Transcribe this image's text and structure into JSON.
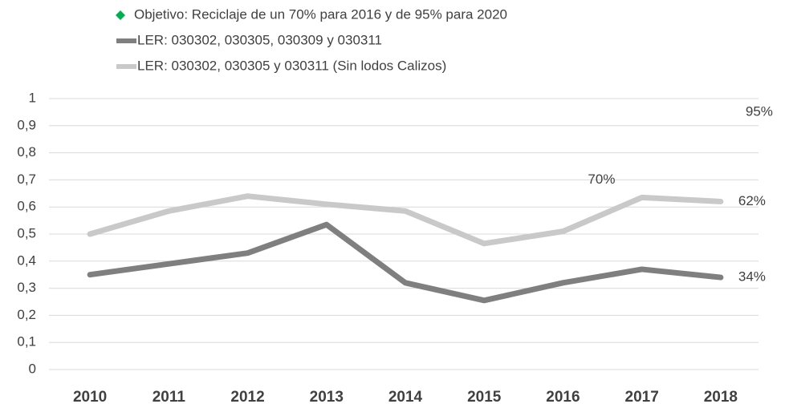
{
  "chart_data": {
    "type": "line",
    "categories": [
      "2010",
      "2011",
      "2012",
      "2013",
      "2014",
      "2015",
      "2016",
      "2017",
      "2018"
    ],
    "series": [
      {
        "name": "Objetivo: Reciclaje de un 70% para 2016 y de 95% para 2020",
        "color": "#00b050",
        "marker": "diamond",
        "values": [
          null,
          null,
          null,
          null,
          null,
          null,
          0.7,
          null,
          0.95
        ],
        "value_labels": [
          null,
          null,
          null,
          null,
          null,
          null,
          "70%",
          null,
          "95%"
        ]
      },
      {
        "name": "LER: 030302, 030305, 030309 y 030311",
        "color": "#7f7f7f",
        "values": [
          0.35,
          0.39,
          0.43,
          0.535,
          0.32,
          0.255,
          0.32,
          0.37,
          0.34
        ],
        "value_labels": [
          null,
          null,
          null,
          null,
          null,
          null,
          null,
          null,
          "34%"
        ]
      },
      {
        "name": "LER: 030302, 030305 y 030311 (Sin lodos Calizos)",
        "color": "#c9c9c9",
        "values": [
          0.5,
          0.585,
          0.64,
          0.61,
          0.585,
          0.465,
          0.51,
          0.635,
          0.62
        ],
        "value_labels": [
          null,
          null,
          null,
          null,
          null,
          null,
          null,
          null,
          "62%"
        ]
      }
    ],
    "ylim": [
      0,
      1
    ],
    "yticks": [
      0,
      {
        "value": 0.1,
        "label": "0,1"
      },
      {
        "value": 0.2,
        "label": "0,2"
      },
      {
        "value": 0.3,
        "label": "0,3"
      },
      {
        "value": 0.4,
        "label": "0,4"
      },
      {
        "value": 0.5,
        "label": "0,5"
      },
      {
        "value": 0.6,
        "label": "0,6"
      },
      {
        "value": 0.7,
        "label": "0,7"
      },
      {
        "value": 0.8,
        "label": "0,8"
      },
      {
        "value": 0.9,
        "label": "0,9"
      },
      1
    ],
    "grid": true
  }
}
